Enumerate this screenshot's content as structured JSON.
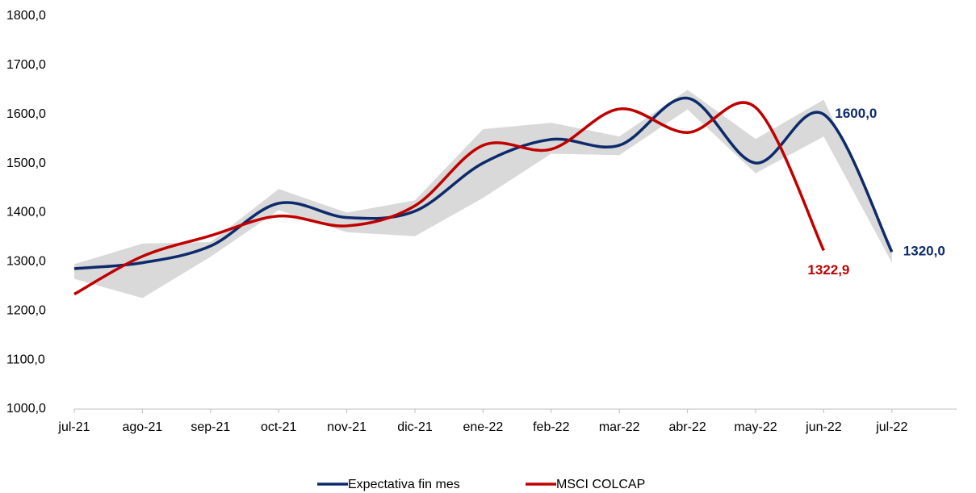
{
  "chart_data": {
    "type": "line",
    "categories": [
      "jul-21",
      "ago-21",
      "sep-21",
      "oct-21",
      "nov-21",
      "dic-21",
      "ene-22",
      "feb-22",
      "mar-22",
      "abr-22",
      "may-22",
      "jun-22",
      "jul-22"
    ],
    "series": [
      {
        "name": "Expectativa fin mes",
        "color": "#0d2a6b",
        "values": [
          1286,
          1298,
          1332,
          1419,
          1390,
          1403,
          1501,
          1549,
          1537,
          1633,
          1501,
          1600,
          1320
        ],
        "value_labels": [
          null,
          null,
          null,
          null,
          null,
          null,
          null,
          null,
          null,
          null,
          null,
          "1600,0",
          "1320,0"
        ]
      },
      {
        "name": "MSCI COLCAP",
        "color": "#c00000",
        "values": [
          1234,
          1311,
          1353,
          1393,
          1373,
          1414,
          1537,
          1529,
          1611,
          1563,
          1614,
          1322.9,
          null
        ],
        "value_labels": [
          null,
          null,
          null,
          null,
          null,
          null,
          null,
          null,
          null,
          null,
          null,
          "1322,9",
          null
        ]
      }
    ],
    "band": {
      "color": "#d9d9d9",
      "upper": [
        1295,
        1337,
        1340,
        1448,
        1400,
        1425,
        1570,
        1583,
        1555,
        1650,
        1550,
        1630,
        1330
      ],
      "lower": [
        1265,
        1226,
        1310,
        1405,
        1360,
        1352,
        1430,
        1520,
        1517,
        1610,
        1480,
        1555,
        1298
      ]
    },
    "ylim": [
      1000,
      1800
    ],
    "yticks": [
      {
        "value": 1000,
        "label": "1000,0"
      },
      {
        "value": 1100,
        "label": "1100,0"
      },
      {
        "value": 1200,
        "label": "1200,0"
      },
      {
        "value": 1300,
        "label": "1300,0"
      },
      {
        "value": 1400,
        "label": "1400,0"
      },
      {
        "value": 1500,
        "label": "1500,0"
      },
      {
        "value": 1600,
        "label": "1600,0"
      },
      {
        "value": 1700,
        "label": "1700,0"
      },
      {
        "value": 1800,
        "label": "1800,0"
      }
    ],
    "grid": false,
    "legend": "bottom"
  }
}
